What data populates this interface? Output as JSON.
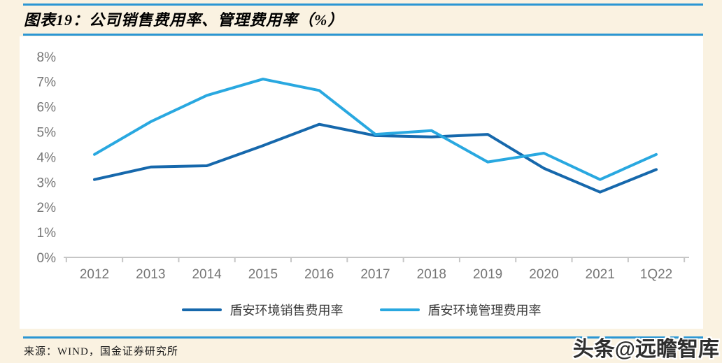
{
  "header": {
    "title": "图表19：公司销售费用率、管理费用率（%）"
  },
  "footer": {
    "source": "来源：WIND，国金证券研究所",
    "watermark": "头条@远瞻智库"
  },
  "chart_data": {
    "type": "line",
    "title": "公司销售费用率、管理费用率（%）",
    "categories": [
      "2012",
      "2013",
      "2014",
      "2015",
      "2016",
      "2017",
      "2018",
      "2019",
      "2020",
      "2021",
      "1Q22"
    ],
    "series": [
      {
        "name": "盾安环境销售费用率",
        "color": "#1668AC",
        "values": [
          3.1,
          3.6,
          3.65,
          4.45,
          5.3,
          4.85,
          4.8,
          4.9,
          3.55,
          2.6,
          3.5
        ]
      },
      {
        "name": "盾安环境管理费用率",
        "color": "#29A8E0",
        "values": [
          4.1,
          5.4,
          6.45,
          7.1,
          6.65,
          4.9,
          5.05,
          3.8,
          4.15,
          3.1,
          4.1
        ]
      }
    ],
    "xlabel": "",
    "ylabel": "",
    "ylim": [
      0,
      8
    ],
    "yticks": [
      0,
      1,
      2,
      3,
      4,
      5,
      6,
      7,
      8
    ],
    "ytick_suffix": "%",
    "grid": false,
    "legend_position": "bottom"
  },
  "colors": {
    "page_bg": "#FAF2E1",
    "panel_bg": "#FFFFFF",
    "rule_blue": "#2B96D3",
    "axis": "#C6C6C6",
    "tick_label": "#757575",
    "legend_text": "#3C3C3C",
    "title_text": "#000000",
    "source_text": "#1A1A1A",
    "watermark_text": "#2E2E2E"
  }
}
